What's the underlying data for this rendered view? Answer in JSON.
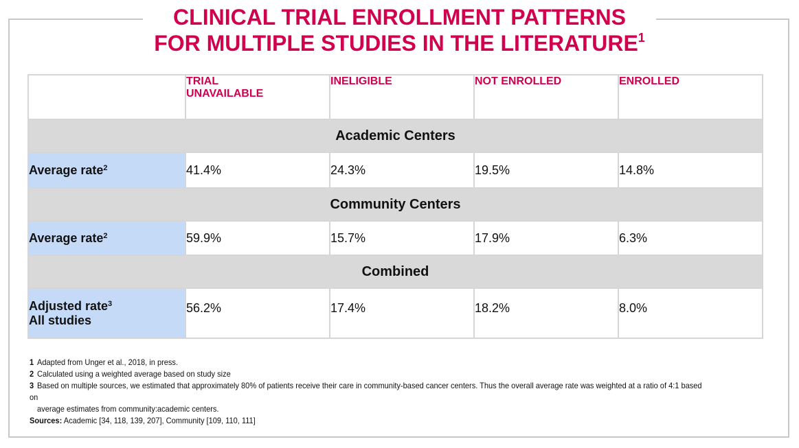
{
  "title": {
    "line1": "CLINICAL TRIAL ENROLLMENT PATTERNS",
    "line2": "FOR MULTIPLE STUDIES IN THE LITERATURE",
    "footnote_marker": "1"
  },
  "table": {
    "columns": [
      "TRIAL UNAVAILABLE",
      "INELIGIBLE",
      "NOT ENROLLED",
      "ENROLLED"
    ],
    "column_lines": {
      "trial_unavailable": [
        "TRIAL",
        "UNAVAILABLE"
      ]
    },
    "sections": [
      {
        "heading": "Academic Centers",
        "row_label": "Average rate",
        "row_label_marker": "2",
        "values": [
          "41.4%",
          "24.3%",
          "19.5%",
          "14.8%"
        ]
      },
      {
        "heading": "Community Centers",
        "row_label": "Average rate",
        "row_label_marker": "2",
        "values": [
          "59.9%",
          "15.7%",
          "17.9%",
          "6.3%"
        ]
      },
      {
        "heading": "Combined",
        "row_label": "Adjusted rate",
        "row_label_marker": "3",
        "row_label_line2": "All studies",
        "values": [
          "56.2%",
          "17.4%",
          "18.2%",
          "8.0%"
        ]
      }
    ],
    "colors": {
      "header_text": "#d1004f",
      "section_bg": "#d9d9d9",
      "label_bg": "#c5daf7",
      "border": "#d6d6d6"
    }
  },
  "footnotes": [
    {
      "num": "1",
      "text": "Adapted from Unger et al., 2018, in press."
    },
    {
      "num": "2",
      "text": "Calculated using a weighted average based on study size"
    },
    {
      "num": "3",
      "text": "Based on multiple sources, we estimated that approximately 80% of patients receive their care in community-based cancer centers. Thus the overall average rate was weighted at a ratio of 4:1 based on",
      "text_line2": "average estimates from community:academic centers."
    }
  ],
  "sources": {
    "label": "Sources:",
    "text": "Academic [34, 118, 139, 207], Community [109, 110, 111]"
  }
}
